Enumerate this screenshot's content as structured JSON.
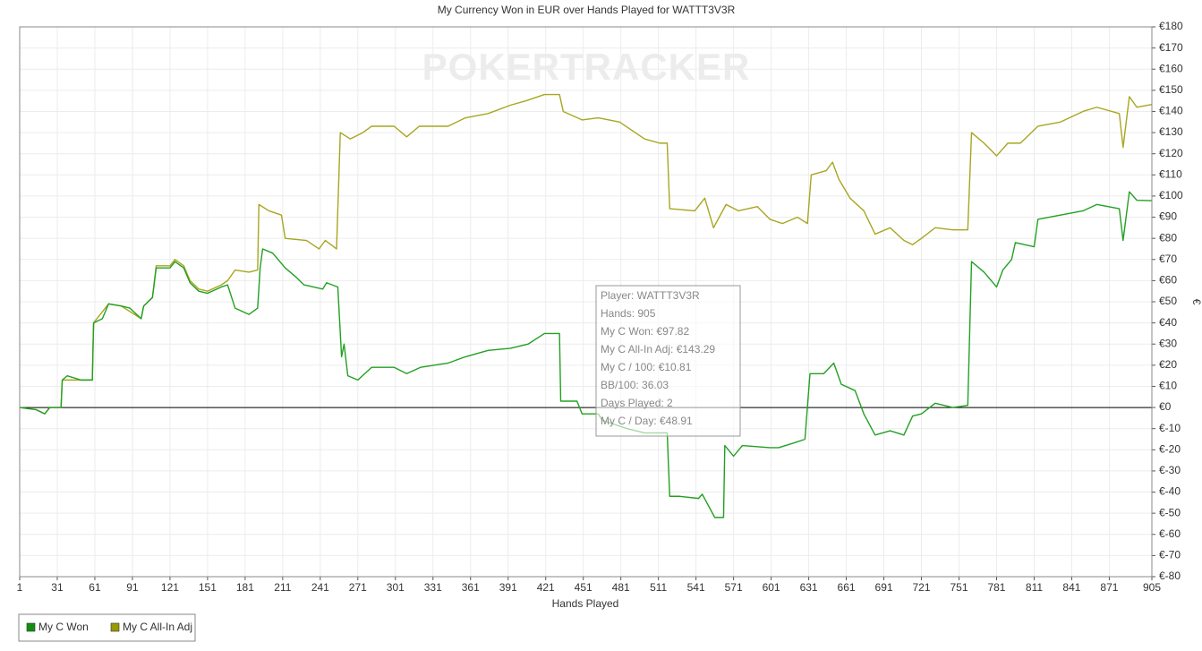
{
  "chart_data": {
    "type": "line",
    "title": "My Currency Won in EUR over Hands Played for WATTT3V3R",
    "watermark": "POKERTRACKER",
    "x_label": "Hands Played",
    "y_label": "€",
    "xlim": [
      1,
      905
    ],
    "xticks": [
      1,
      31,
      61,
      91,
      121,
      151,
      181,
      211,
      241,
      271,
      301,
      331,
      361,
      391,
      421,
      451,
      481,
      511,
      541,
      571,
      601,
      631,
      661,
      691,
      721,
      751,
      781,
      811,
      841,
      871,
      905
    ],
    "ylim": [
      -80,
      180
    ],
    "yticks": [
      {
        "value": 180,
        "label": "€180"
      },
      {
        "value": 170,
        "label": "€170"
      },
      {
        "value": 160,
        "label": "€160"
      },
      {
        "value": 150,
        "label": "€150"
      },
      {
        "value": 140,
        "label": "€140"
      },
      {
        "value": 130,
        "label": "€130"
      },
      {
        "value": 120,
        "label": "€120"
      },
      {
        "value": 110,
        "label": "€110"
      },
      {
        "value": 100,
        "label": "€100"
      },
      {
        "value": 90,
        "label": "€90"
      },
      {
        "value": 80,
        "label": "€80"
      },
      {
        "value": 70,
        "label": "€70"
      },
      {
        "value": 60,
        "label": "€60"
      },
      {
        "value": 50,
        "label": "€50"
      },
      {
        "value": 40,
        "label": "€40"
      },
      {
        "value": 30,
        "label": "€30"
      },
      {
        "value": 20,
        "label": "€20"
      },
      {
        "value": 10,
        "label": "€10"
      },
      {
        "value": 0,
        "label": "€0"
      },
      {
        "value": -10,
        "label": "€-10"
      },
      {
        "value": -20,
        "label": "€-20"
      },
      {
        "value": -30,
        "label": "€-30"
      },
      {
        "value": -40,
        "label": "€-40"
      },
      {
        "value": -50,
        "label": "€-50"
      },
      {
        "value": -60,
        "label": "€-60"
      },
      {
        "value": -70,
        "label": "€-70"
      },
      {
        "value": -80,
        "label": "€-80"
      }
    ],
    "grid": true,
    "legend": "bottom-left",
    "series": [
      {
        "name": "My C Won",
        "color": "#22a022",
        "legend_color": "#109010",
        "x": [
          1,
          14,
          21,
          25,
          34,
          35,
          39,
          50,
          59,
          60,
          67,
          72,
          82,
          89,
          98,
          100,
          107,
          110,
          121,
          125,
          132,
          137,
          144,
          151,
          162,
          167,
          173,
          184,
          191,
          193,
          195,
          203,
          213,
          221,
          228,
          243,
          246,
          255,
          258,
          260,
          263,
          271,
          282,
          300,
          310,
          321,
          343,
          357,
          375,
          393,
          407,
          420,
          432,
          433,
          446,
          450,
          463,
          466,
          486,
          500,
          518,
          520,
          528,
          543,
          546,
          556,
          563,
          564,
          571,
          578,
          600,
          607,
          618,
          628,
          632,
          643,
          651,
          657,
          668,
          675,
          684,
          696,
          707,
          714,
          721,
          732,
          746,
          758,
          761,
          771,
          781,
          786,
          793,
          796,
          811,
          814,
          832,
          850,
          861,
          879,
          882,
          887,
          893,
          905
        ],
        "values": [
          0,
          -1,
          -3,
          0,
          0,
          13,
          15,
          13,
          13,
          40,
          42,
          49,
          48,
          47,
          42,
          48,
          52,
          66,
          66,
          69,
          66,
          59,
          55,
          54,
          57,
          58,
          47,
          44,
          47,
          66,
          75,
          73,
          66,
          62,
          58,
          56,
          59,
          57,
          24,
          30,
          15,
          13,
          19,
          19,
          16,
          19,
          21,
          24,
          27,
          28,
          30,
          35,
          35,
          3,
          3,
          -3,
          -3,
          -6,
          -10,
          -12,
          -12,
          -42,
          -42,
          -43,
          -41,
          -52,
          -52,
          -18,
          -23,
          -18,
          -19,
          -19,
          -17,
          -15,
          16,
          16,
          21,
          11,
          8,
          -3,
          -13,
          -11,
          -13,
          -4,
          -3,
          2,
          0,
          1,
          69,
          64,
          57,
          65,
          70,
          78,
          76,
          89,
          91,
          93,
          96,
          94,
          79,
          102,
          98,
          97.82
        ]
      },
      {
        "name": "My C All-In Adj",
        "color": "#a8a620",
        "legend_color": "#999900",
        "x": [
          1,
          14,
          21,
          25,
          34,
          35,
          50,
          59,
          60,
          72,
          82,
          98,
          100,
          107,
          110,
          121,
          125,
          132,
          137,
          144,
          151,
          162,
          167,
          173,
          184,
          191,
          192,
          200,
          210,
          213,
          230,
          240,
          245,
          254,
          257,
          265,
          275,
          282,
          300,
          310,
          320,
          343,
          357,
          375,
          393,
          405,
          420,
          432,
          435,
          450,
          463,
          480,
          500,
          512,
          518,
          520,
          540,
          548,
          555,
          565,
          575,
          590,
          600,
          610,
          622,
          630,
          633,
          645,
          650,
          655,
          664,
          675,
          684,
          696,
          707,
          714,
          721,
          732,
          746,
          758,
          761,
          771,
          781,
          790,
          800,
          814,
          832,
          850,
          861,
          879,
          882,
          887,
          893,
          905
        ],
        "values": [
          0,
          -1,
          -3,
          0,
          0,
          13,
          13,
          13,
          40,
          49,
          48,
          42,
          48,
          52,
          67,
          67,
          70,
          67,
          60,
          56,
          55,
          58,
          60,
          65,
          64,
          65,
          96,
          93,
          91,
          80,
          79,
          75,
          79,
          75,
          130,
          127,
          130,
          133,
          133,
          128,
          133,
          133,
          137,
          139,
          143,
          145,
          148,
          148,
          140,
          136,
          137,
          135,
          127,
          125,
          125,
          94,
          93,
          99,
          85,
          96,
          93,
          95,
          89,
          87,
          90,
          87,
          110,
          112,
          116,
          108,
          99,
          93,
          82,
          85,
          79,
          77,
          80,
          85,
          84,
          84,
          130,
          125,
          119,
          125,
          125,
          133,
          135,
          140,
          142,
          139,
          123,
          147,
          142,
          143.29
        ]
      }
    ],
    "tooltip": [
      "Player: WATTT3V3R",
      "Hands: 905",
      "My C Won: €97.82",
      "My C All-In Adj: €143.29",
      "My C / 100: €10.81",
      "BB/100: 36.03",
      "Days Played: 2",
      "My C / Day: €48.91"
    ]
  }
}
